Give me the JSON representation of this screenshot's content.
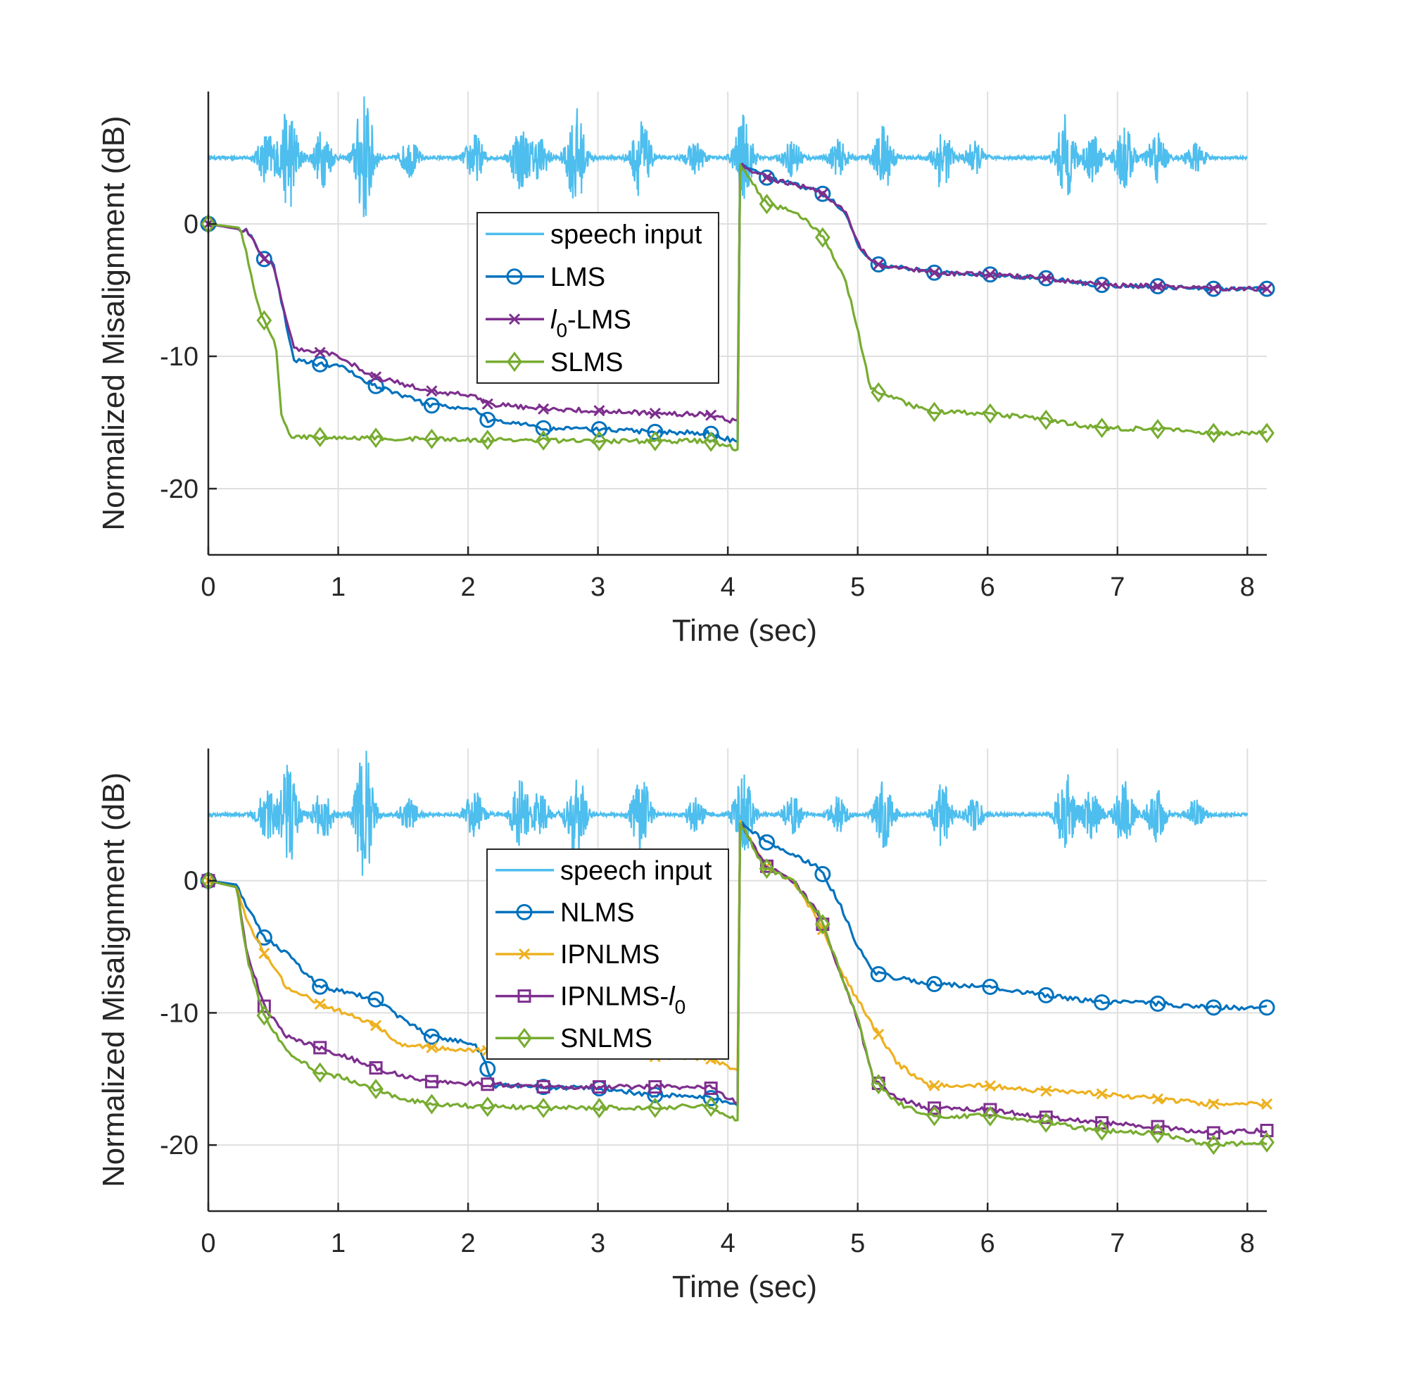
{
  "chart_data": [
    {
      "type": "line",
      "xlabel": "Time (sec)",
      "ylabel": "Normalized Misalignment (dB)",
      "xlim": [
        0,
        8.15
      ],
      "ylim": [
        -25,
        10
      ],
      "xticks": [
        "0",
        "1",
        "2",
        "3",
        "4",
        "5",
        "6",
        "7",
        "8"
      ],
      "yticks": [
        "0",
        "-10",
        "-20"
      ],
      "grid": true,
      "legend": "upper-middle",
      "speech_bursts": [
        {
          "t": 0.45,
          "amp": 2.0
        },
        {
          "t": 0.62,
          "amp": 4.0
        },
        {
          "t": 0.88,
          "amp": 2.2
        },
        {
          "t": 1.2,
          "amp": 5.0
        },
        {
          "t": 1.55,
          "amp": 1.4
        },
        {
          "t": 2.05,
          "amp": 1.8
        },
        {
          "t": 2.4,
          "amp": 2.5
        },
        {
          "t": 2.55,
          "amp": 1.6
        },
        {
          "t": 2.83,
          "amp": 3.8
        },
        {
          "t": 3.33,
          "amp": 3.0
        },
        {
          "t": 3.75,
          "amp": 1.2
        },
        {
          "t": 4.12,
          "amp": 3.2
        },
        {
          "t": 4.5,
          "amp": 1.4
        },
        {
          "t": 4.85,
          "amp": 1.3
        },
        {
          "t": 5.2,
          "amp": 2.5
        },
        {
          "t": 5.65,
          "amp": 2.4
        },
        {
          "t": 5.9,
          "amp": 1.2
        },
        {
          "t": 6.6,
          "amp": 3.2
        },
        {
          "t": 6.8,
          "amp": 1.8
        },
        {
          "t": 7.05,
          "amp": 2.6
        },
        {
          "t": 7.3,
          "amp": 2.0
        },
        {
          "t": 7.6,
          "amp": 1.1
        }
      ],
      "series": [
        {
          "name": "speech input",
          "color": "#4DBEEE",
          "marker": "none",
          "baseline": 5.0
        },
        {
          "name": "LMS",
          "color": "#0072BD",
          "marker": "o",
          "x": [
            0,
            0.3,
            0.42,
            0.5,
            0.62,
            0.66,
            0.85,
            1.0,
            1.2,
            1.3,
            1.7,
            2.05,
            2.15,
            2.5,
            2.6,
            3.0,
            3.4,
            3.85,
            4.08,
            4.09,
            4.3,
            4.7,
            4.9,
            5.0,
            5.12,
            5.6,
            6.0,
            6.45,
            6.85,
            7.3,
            7.7,
            8.15
          ],
          "y": [
            0,
            -0.5,
            -2.6,
            -3.0,
            -8.5,
            -10.3,
            -10.6,
            -10.7,
            -11.8,
            -12.3,
            -13.7,
            -14.0,
            -14.8,
            -15.2,
            -15.5,
            -15.5,
            -15.7,
            -15.8,
            -16.5,
            4.5,
            3.5,
            2.5,
            1.0,
            -1.5,
            -3.0,
            -3.7,
            -3.8,
            -4.1,
            -4.6,
            -4.7,
            -4.9,
            -4.9
          ]
        },
        {
          "name": "l0-LMS",
          "color": "#7E2F8E",
          "marker": "x",
          "x": [
            0,
            0.3,
            0.42,
            0.5,
            0.62,
            0.66,
            0.85,
            1.0,
            1.2,
            1.3,
            1.7,
            2.05,
            2.15,
            2.5,
            2.6,
            3.0,
            3.4,
            3.85,
            4.08,
            4.09,
            4.3,
            4.7,
            4.9,
            5.0,
            5.12,
            5.6,
            6.0,
            6.45,
            6.85,
            7.3,
            7.7,
            8.15
          ],
          "y": [
            0,
            -0.5,
            -2.6,
            -3.0,
            -8.0,
            -9.5,
            -9.7,
            -9.9,
            -11.2,
            -11.6,
            -12.6,
            -13.0,
            -13.6,
            -13.9,
            -14.0,
            -14.1,
            -14.3,
            -14.4,
            -15.0,
            4.5,
            3.5,
            2.5,
            1.0,
            -1.5,
            -3.0,
            -3.7,
            -3.8,
            -4.1,
            -4.6,
            -4.7,
            -4.9,
            -4.9
          ]
        },
        {
          "name": "SLMS",
          "color": "#77AC30",
          "marker": "diamond",
          "x": [
            0,
            0.25,
            0.38,
            0.45,
            0.52,
            0.56,
            0.64,
            1.0,
            2.0,
            3.0,
            3.85,
            4.08,
            4.09,
            4.3,
            4.5,
            4.7,
            4.9,
            5.0,
            5.1,
            5.55,
            6.0,
            6.45,
            6.85,
            7.3,
            7.7,
            8.15
          ],
          "y": [
            0,
            -0.3,
            -6.0,
            -7.8,
            -9.0,
            -14.5,
            -16.1,
            -16.1,
            -16.3,
            -16.4,
            -16.4,
            -17.0,
            4.5,
            1.5,
            1.0,
            -0.5,
            -4.0,
            -8.0,
            -12.5,
            -14.2,
            -14.3,
            -14.8,
            -15.4,
            -15.5,
            -15.8,
            -15.8
          ]
        }
      ]
    },
    {
      "type": "line",
      "xlabel": "Time (sec)",
      "ylabel": "Normalized Misalignment (dB)",
      "xlim": [
        0,
        8.15
      ],
      "ylim": [
        -25,
        10
      ],
      "xticks": [
        "0",
        "1",
        "2",
        "3",
        "4",
        "5",
        "6",
        "7",
        "8"
      ],
      "yticks": [
        "0",
        "-10",
        "-20"
      ],
      "grid": true,
      "legend": "upper-middle",
      "series": [
        {
          "name": "speech input",
          "color": "#4DBEEE",
          "marker": "none",
          "baseline": 5.0
        },
        {
          "name": "NLMS",
          "color": "#0072BD",
          "marker": "o",
          "x": [
            0,
            0.22,
            0.3,
            0.43,
            0.6,
            0.85,
            1.0,
            1.3,
            1.5,
            1.72,
            2.05,
            2.12,
            2.2,
            2.55,
            3.0,
            3.4,
            3.85,
            4.08,
            4.09,
            4.28,
            4.7,
            4.85,
            5.0,
            5.12,
            5.55,
            6.0,
            6.4,
            6.85,
            7.3,
            7.7,
            8.15
          ],
          "y": [
            0,
            -0.3,
            -2.0,
            -4.3,
            -5.5,
            -8.0,
            -8.3,
            -9.0,
            -10.5,
            -11.8,
            -12.3,
            -13.5,
            -15.5,
            -15.6,
            -15.7,
            -16.2,
            -16.4,
            -17.0,
            4.5,
            3.0,
            1.0,
            -1.5,
            -5.0,
            -7.0,
            -7.8,
            -8.0,
            -8.6,
            -9.2,
            -9.3,
            -9.6,
            -9.6
          ]
        },
        {
          "name": "IPNLMS",
          "color": "#EDB120",
          "marker": "x",
          "x": [
            0,
            0.22,
            0.3,
            0.43,
            0.6,
            0.85,
            1.0,
            1.3,
            1.5,
            2.0,
            2.5,
            3.0,
            3.4,
            3.85,
            4.08,
            4.09,
            4.28,
            4.5,
            4.7,
            4.85,
            5.0,
            5.12,
            5.3,
            5.55,
            6.0,
            6.4,
            6.85,
            7.3,
            7.7,
            8.15
          ],
          "y": [
            0,
            -0.5,
            -3.0,
            -5.5,
            -8.0,
            -9.3,
            -9.8,
            -11.0,
            -12.5,
            -12.8,
            -13.0,
            -13.1,
            -13.3,
            -13.4,
            -14.5,
            4.5,
            1.2,
            0.0,
            -3.0,
            -6.5,
            -9.0,
            -11.0,
            -13.8,
            -15.5,
            -15.5,
            -15.9,
            -16.1,
            -16.5,
            -16.9,
            -16.9
          ]
        },
        {
          "name": "IPNLMS-l0",
          "color": "#7E2F8E",
          "marker": "square",
          "x": [
            0,
            0.22,
            0.3,
            0.43,
            0.6,
            0.85,
            1.0,
            1.3,
            1.5,
            1.72,
            2.15,
            2.6,
            3.0,
            3.4,
            3.85,
            4.08,
            4.09,
            4.28,
            4.5,
            4.7,
            4.85,
            5.0,
            5.12,
            5.3,
            5.55,
            6.0,
            6.45,
            6.85,
            7.3,
            7.7,
            8.15
          ],
          "y": [
            0,
            -0.5,
            -5.5,
            -9.5,
            -11.8,
            -12.6,
            -13.1,
            -14.2,
            -14.8,
            -15.2,
            -15.4,
            -15.6,
            -15.6,
            -15.6,
            -15.6,
            -16.8,
            4.5,
            1.2,
            0.0,
            -2.5,
            -6.5,
            -10.5,
            -15.0,
            -16.5,
            -17.2,
            -17.3,
            -17.9,
            -18.3,
            -18.6,
            -19.1,
            -18.9
          ]
        },
        {
          "name": "SNLMS",
          "color": "#77AC30",
          "marker": "diamond",
          "x": [
            0,
            0.22,
            0.3,
            0.43,
            0.6,
            0.85,
            1.0,
            1.3,
            1.5,
            1.72,
            2.15,
            2.6,
            3.0,
            3.4,
            3.85,
            4.08,
            4.09,
            4.28,
            4.5,
            4.7,
            4.85,
            5.0,
            5.12,
            5.3,
            5.55,
            6.0,
            6.45,
            6.85,
            7.3,
            7.7,
            8.15
          ],
          "y": [
            0,
            -0.5,
            -6.0,
            -10.2,
            -12.8,
            -14.5,
            -14.8,
            -15.8,
            -16.5,
            -16.9,
            -17.1,
            -17.2,
            -17.2,
            -17.2,
            -17.0,
            -18.2,
            4.5,
            1.0,
            0.0,
            -2.5,
            -6.5,
            -10.5,
            -15.0,
            -16.8,
            -17.8,
            -17.8,
            -18.3,
            -18.9,
            -19.1,
            -20.0,
            -19.8
          ]
        }
      ]
    }
  ]
}
